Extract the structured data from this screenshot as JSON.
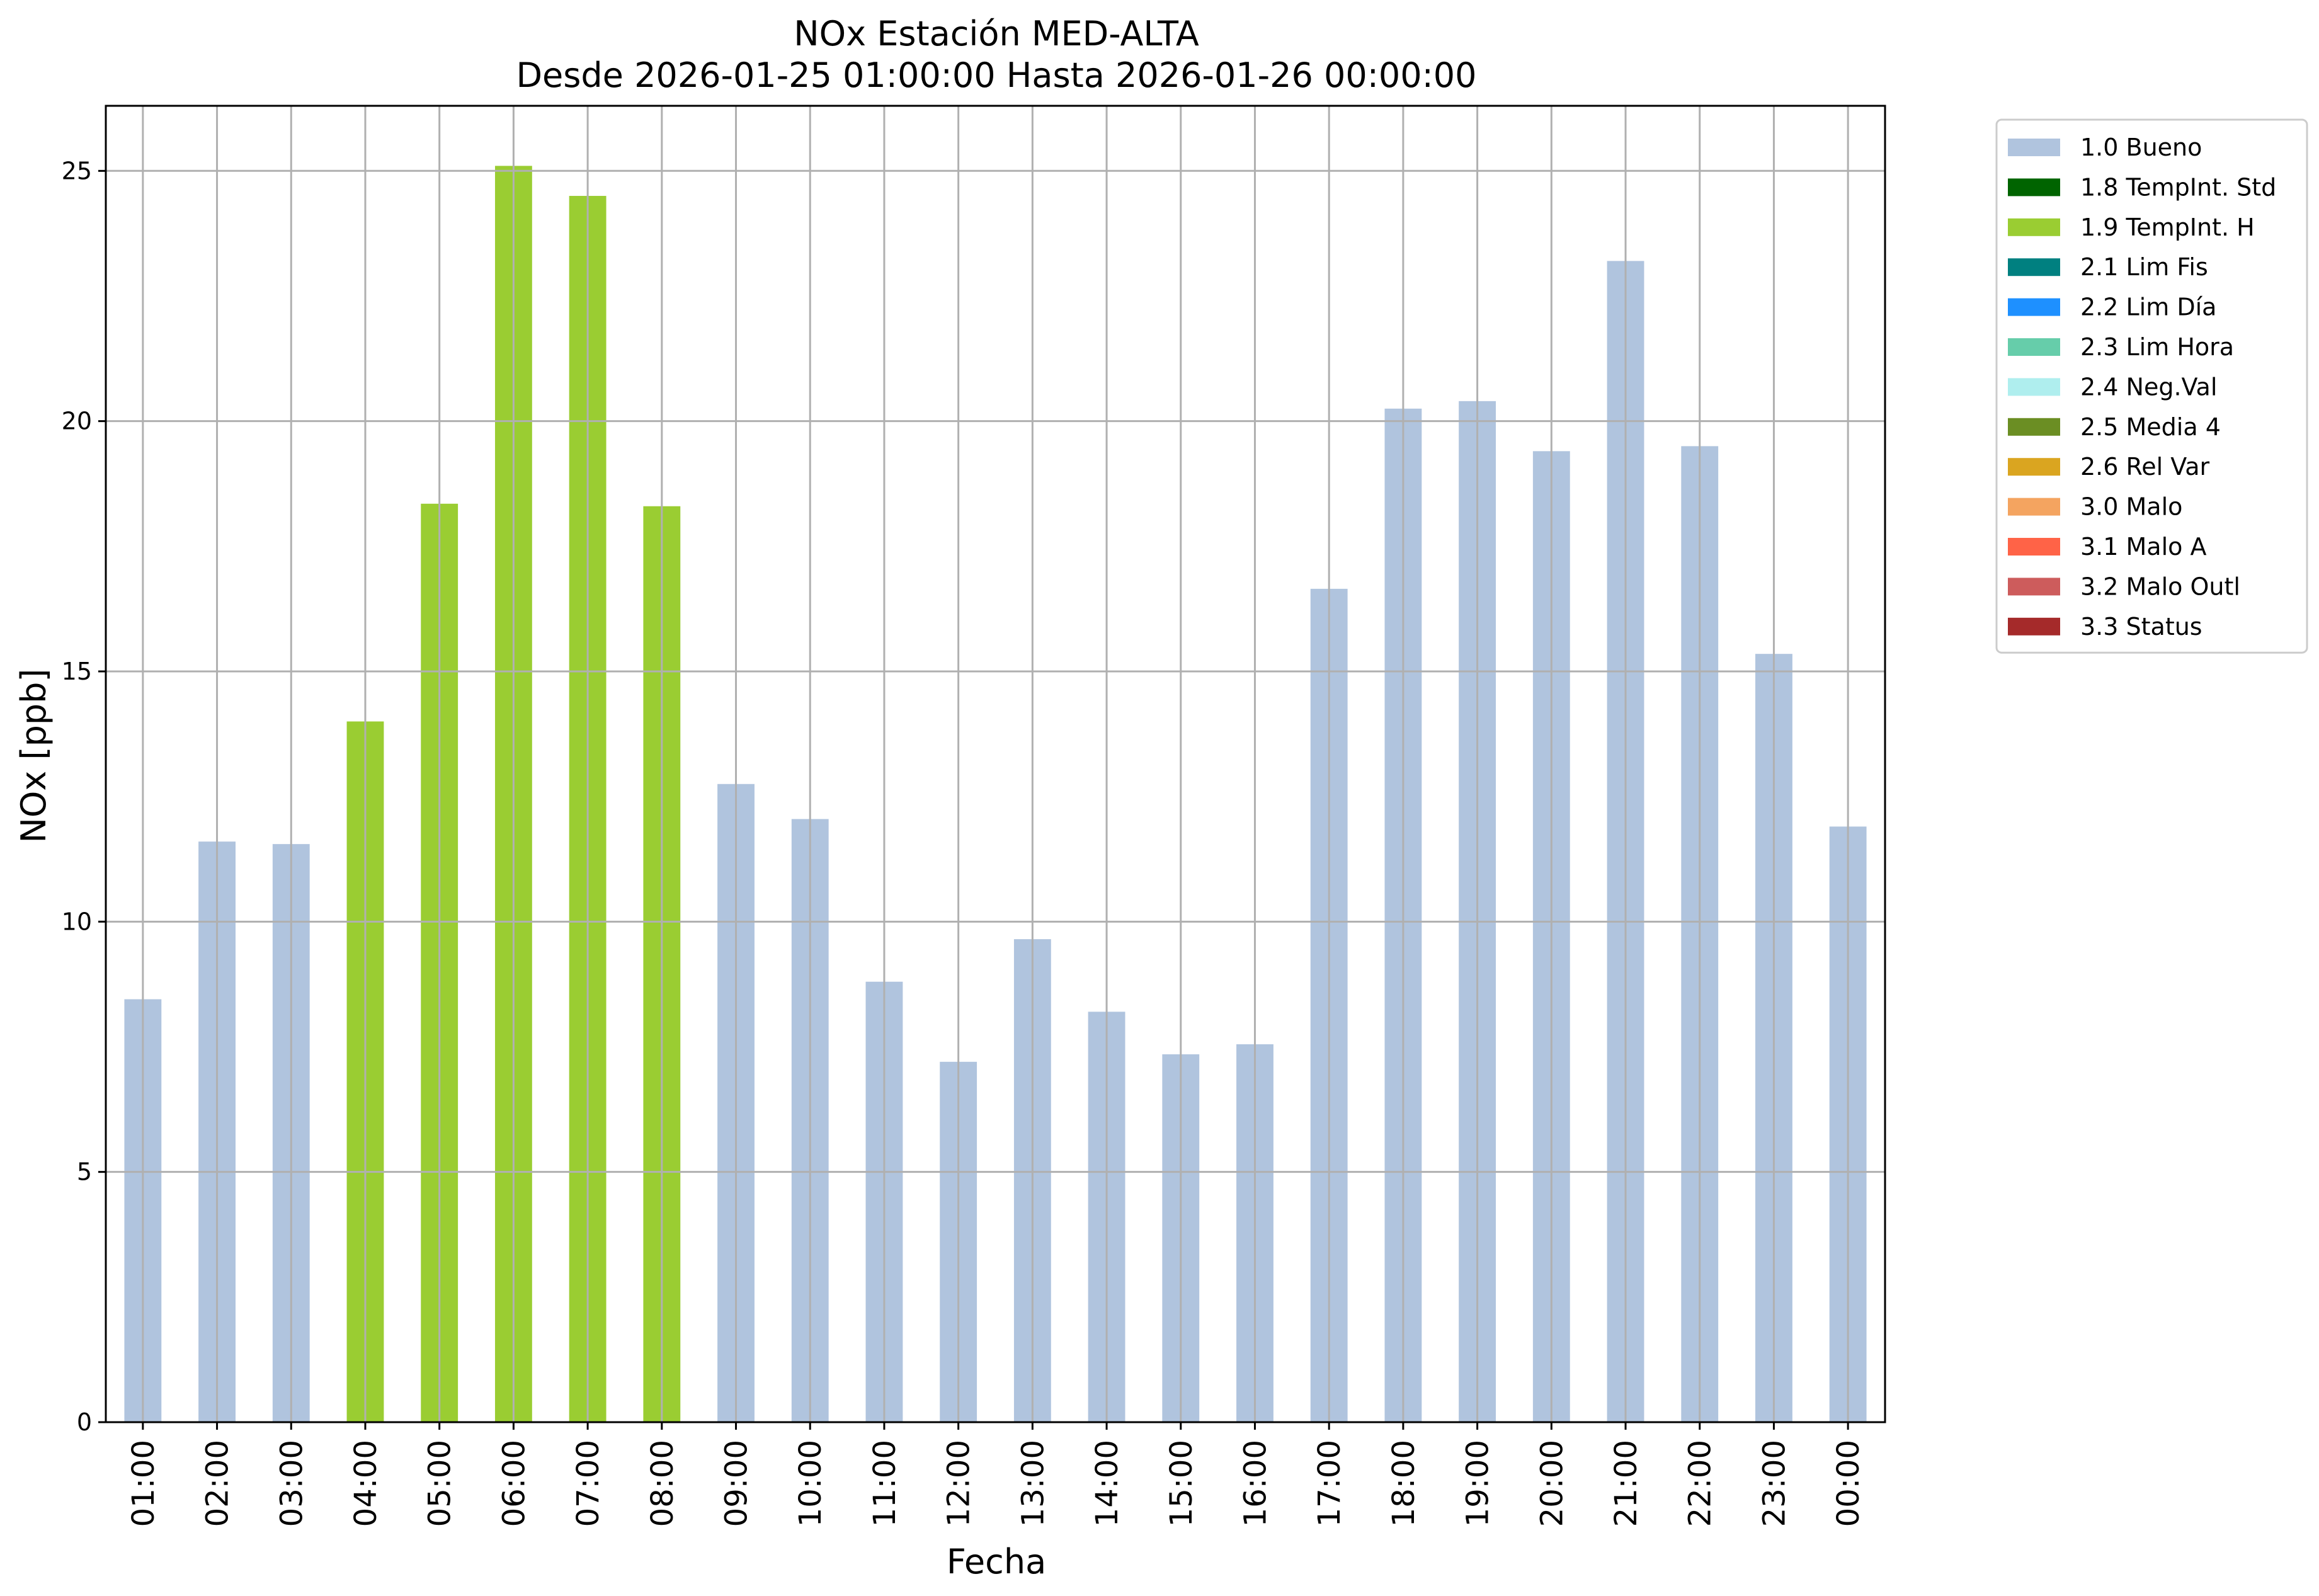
{
  "chart_data": {
    "type": "bar",
    "title": "NOx Estación MED-ALTA",
    "subtitle": "Desde 2026-01-25 01:00:00 Hasta 2026-01-26 00:00:00",
    "xlabel": "Fecha",
    "ylabel": "NOx [ppb]",
    "ylim": [
      0,
      26.3
    ],
    "yticks": [
      0,
      5,
      10,
      15,
      20,
      25
    ],
    "grid": true,
    "legend_position": "outside-top-right",
    "categories": [
      "01:00",
      "02:00",
      "03:00",
      "04:00",
      "05:00",
      "06:00",
      "07:00",
      "08:00",
      "09:00",
      "10:00",
      "11:00",
      "12:00",
      "13:00",
      "14:00",
      "15:00",
      "16:00",
      "17:00",
      "18:00",
      "19:00",
      "20:00",
      "21:00",
      "22:00",
      "23:00",
      "00:00"
    ],
    "values": [
      8.45,
      11.6,
      11.55,
      14.0,
      18.35,
      25.1,
      24.5,
      18.3,
      12.75,
      12.05,
      8.8,
      7.2,
      9.65,
      8.2,
      7.35,
      7.55,
      16.65,
      20.25,
      20.4,
      19.4,
      23.2,
      19.5,
      15.35,
      11.9
    ],
    "flags": [
      "1.0 Bueno",
      "1.0 Bueno",
      "1.0 Bueno",
      "1.9 TempInt. H",
      "1.9 TempInt. H",
      "1.9 TempInt. H",
      "1.9 TempInt. H",
      "1.9 TempInt. H",
      "1.0 Bueno",
      "1.0 Bueno",
      "1.0 Bueno",
      "1.0 Bueno",
      "1.0 Bueno",
      "1.0 Bueno",
      "1.0 Bueno",
      "1.0 Bueno",
      "1.0 Bueno",
      "1.0 Bueno",
      "1.0 Bueno",
      "1.0 Bueno",
      "1.0 Bueno",
      "1.0 Bueno",
      "1.0 Bueno",
      "1.0 Bueno"
    ],
    "legend": [
      {
        "label": "1.0 Bueno",
        "color": "#b0c4de"
      },
      {
        "label": "1.8 TempInt. Std",
        "color": "#006400"
      },
      {
        "label": "1.9 TempInt. H",
        "color": "#9acd32"
      },
      {
        "label": "2.1 Lim Fis",
        "color": "#008080"
      },
      {
        "label": "2.2 Lim Día",
        "color": "#1e90ff"
      },
      {
        "label": "2.3 Lim Hora",
        "color": "#66cdaa"
      },
      {
        "label": "2.4 Neg.Val",
        "color": "#afeeee"
      },
      {
        "label": "2.5 Media 4",
        "color": "#6b8e23"
      },
      {
        "label": "2.6 Rel Var",
        "color": "#daa520"
      },
      {
        "label": "3.0 Malo",
        "color": "#f4a460"
      },
      {
        "label": "3.1 Malo A",
        "color": "#ff6347"
      },
      {
        "label": "3.2 Malo Outl",
        "color": "#cd5c5c"
      },
      {
        "label": "3.3 Status",
        "color": "#a52a2a"
      }
    ]
  }
}
